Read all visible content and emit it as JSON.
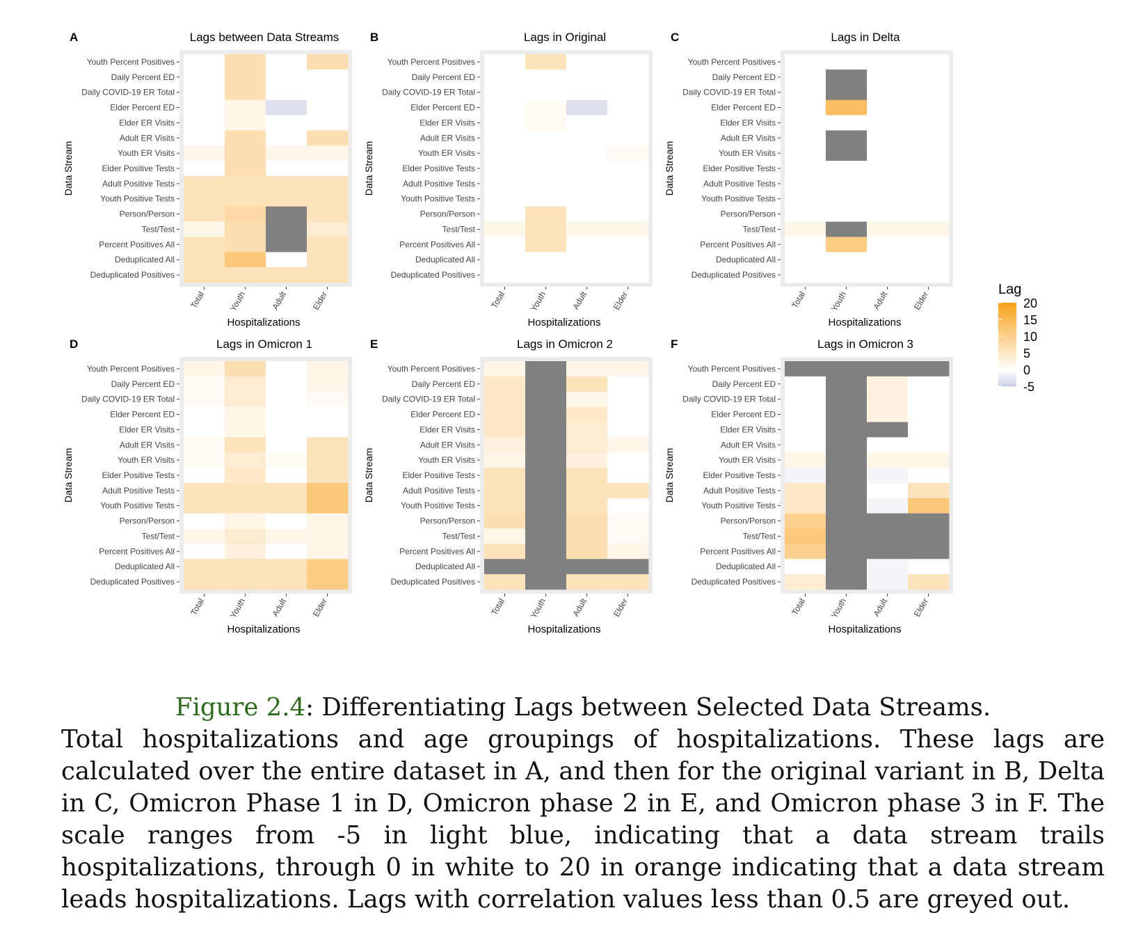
{
  "chart_data": {
    "type": "heatmap",
    "rows": [
      "Youth Percent Positives",
      "Daily Percent ED",
      "Daily COVID-19 ER Total",
      "Elder Percent ED",
      "Elder ER Visits",
      "Adult ER Visits",
      "Youth ER Visits",
      "Elder Positive Tests",
      "Adult Positive Tests",
      "Youth Positive Tests",
      "Person/Person",
      "Test/Test",
      "Percent Positives All",
      "Deduplicated All",
      "Deduplicated Positives"
    ],
    "columns": [
      "Total",
      "Youth",
      "Adult",
      "Elder"
    ],
    "x_label": "Hospitalizations",
    "y_label": "Data Stream",
    "legend": {
      "title": "Lag",
      "min": -5,
      "max": 20,
      "ticks": [
        20,
        15,
        10,
        5,
        0,
        -5
      ],
      "low_color": "#c8cce3",
      "mid_color": "#ffffff",
      "high_color": "#f9a21f",
      "na_color": "#808080"
    },
    "panels": [
      {
        "letter": "A",
        "title": "Lags between Data Streams",
        "values": [
          [
            0,
            7,
            0,
            7
          ],
          [
            0,
            7,
            0,
            0
          ],
          [
            0,
            7,
            0,
            0
          ],
          [
            0,
            2,
            -3,
            0
          ],
          [
            0,
            2,
            0,
            0
          ],
          [
            0,
            7,
            0,
            7
          ],
          [
            2,
            7,
            2,
            2
          ],
          [
            0,
            7,
            0,
            0
          ],
          [
            6,
            6,
            6,
            6
          ],
          [
            6,
            6,
            6,
            6
          ],
          [
            6,
            8,
            null,
            6
          ],
          [
            2,
            7,
            null,
            4
          ],
          [
            6,
            7,
            null,
            6
          ],
          [
            6,
            12,
            0,
            6
          ],
          [
            6,
            6,
            6,
            6
          ]
        ]
      },
      {
        "letter": "B",
        "title": "Lags in Original",
        "values": [
          [
            0,
            6,
            0,
            0
          ],
          [
            0,
            0,
            0,
            0
          ],
          [
            0,
            0,
            0,
            0
          ],
          [
            0,
            1,
            -3,
            0
          ],
          [
            0,
            1,
            0,
            0
          ],
          [
            0,
            0,
            0,
            0
          ],
          [
            0,
            0,
            0,
            1
          ],
          [
            0,
            0,
            0,
            0
          ],
          [
            0,
            0,
            0,
            0
          ],
          [
            0,
            0,
            0,
            0
          ],
          [
            0,
            6,
            0,
            0
          ],
          [
            2,
            6,
            2,
            2
          ],
          [
            0,
            6,
            0,
            0
          ],
          [
            0,
            0,
            0,
            0
          ],
          [
            0,
            0,
            0,
            0
          ]
        ]
      },
      {
        "letter": "C",
        "title": "Lags in Delta",
        "values": [
          [
            0,
            0,
            0,
            0
          ],
          [
            0,
            null,
            0,
            0
          ],
          [
            0,
            null,
            0,
            0
          ],
          [
            0,
            14,
            0,
            0
          ],
          [
            0,
            0,
            0,
            0
          ],
          [
            0,
            null,
            0,
            0
          ],
          [
            0,
            null,
            0,
            0
          ],
          [
            0,
            0,
            0,
            0
          ],
          [
            0,
            0,
            0,
            0
          ],
          [
            0,
            0,
            0,
            0
          ],
          [
            0,
            0,
            0,
            0
          ],
          [
            2,
            null,
            2,
            2
          ],
          [
            0,
            11,
            0,
            0
          ],
          [
            0,
            0,
            0,
            0
          ],
          [
            0,
            0,
            0,
            0
          ]
        ]
      },
      {
        "letter": "D",
        "title": "Lags in Omicron 1",
        "values": [
          [
            2,
            7,
            0,
            2
          ],
          [
            1,
            4,
            0,
            2
          ],
          [
            1,
            4,
            0,
            1
          ],
          [
            0,
            2,
            0,
            0
          ],
          [
            0,
            2,
            0,
            0
          ],
          [
            1,
            6,
            0,
            6
          ],
          [
            1,
            4,
            1,
            6
          ],
          [
            0,
            5,
            0,
            6
          ],
          [
            6,
            6,
            6,
            12
          ],
          [
            6,
            6,
            6,
            12
          ],
          [
            0,
            2,
            0,
            2
          ],
          [
            2,
            4,
            2,
            2
          ],
          [
            0,
            3,
            0,
            2
          ],
          [
            6,
            6,
            6,
            11
          ],
          [
            6,
            6,
            6,
            11
          ]
        ]
      },
      {
        "letter": "E",
        "title": "Lags in Omicron 2",
        "values": [
          [
            2,
            null,
            2,
            2
          ],
          [
            5,
            null,
            6,
            0
          ],
          [
            5,
            null,
            2,
            0
          ],
          [
            5,
            null,
            5,
            0
          ],
          [
            5,
            null,
            4,
            0
          ],
          [
            3,
            null,
            4,
            2
          ],
          [
            2,
            null,
            3,
            0
          ],
          [
            6,
            null,
            6,
            0
          ],
          [
            6,
            null,
            6,
            6
          ],
          [
            6,
            null,
            6,
            0
          ],
          [
            7,
            null,
            7,
            1
          ],
          [
            2,
            null,
            7,
            1
          ],
          [
            6,
            null,
            7,
            2
          ],
          [
            null,
            null,
            null,
            null
          ],
          [
            6,
            null,
            6,
            6
          ]
        ]
      },
      {
        "letter": "F",
        "title": "Lags in Omicron 3",
        "values": [
          [
            null,
            null,
            null,
            null
          ],
          [
            0,
            null,
            3,
            0
          ],
          [
            0,
            null,
            3,
            0
          ],
          [
            0,
            null,
            3,
            0
          ],
          [
            0,
            null,
            null,
            0
          ],
          [
            0,
            null,
            0,
            0
          ],
          [
            2,
            null,
            2,
            2
          ],
          [
            -1,
            null,
            -1,
            0
          ],
          [
            5,
            null,
            0,
            6
          ],
          [
            5,
            null,
            -1,
            12
          ],
          [
            10,
            null,
            null,
            null
          ],
          [
            12,
            null,
            null,
            null
          ],
          [
            10,
            null,
            null,
            null
          ],
          [
            0,
            null,
            -1,
            0
          ],
          [
            4,
            null,
            -1,
            6
          ]
        ]
      }
    ]
  },
  "caption": {
    "label": "Figure 2.4",
    "heading": ": Differentiating Lags between Selected Data Streams.",
    "body": "Total hospitalizations and age groupings of hospitalizations. These lags are calculated over the entire dataset in A, and then for the original variant in B, Delta in C, Omicron Phase 1 in D, Omicron phase 2 in E, and Omicron phase 3 in F. The scale ranges from -5 in light blue, indicating that a data stream trails hospitalizations, through 0 in white to 20 in orange indicating that a data stream leads hospitalizations. Lags with correlation values less than 0.5 are greyed out."
  }
}
